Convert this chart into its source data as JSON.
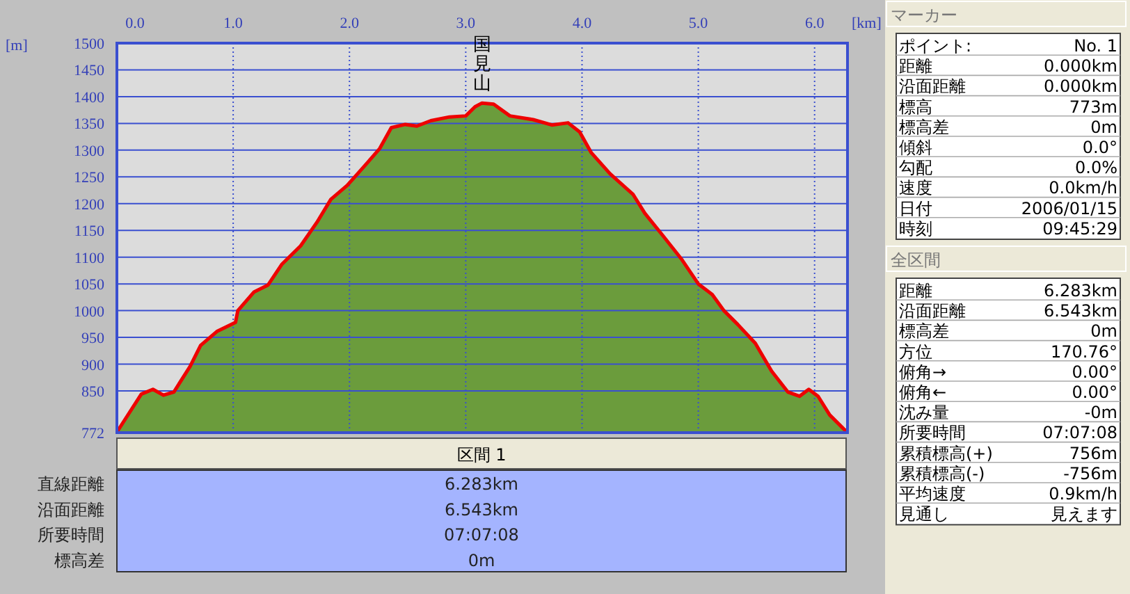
{
  "chart_data": [
    {
      "type": "area",
      "xlabel": "[km]",
      "ylabel": "[m]",
      "xlim": [
        0,
        6.283
      ],
      "ylim": [
        772,
        1500
      ],
      "xticks": [
        {
          "value": 0,
          "label": "0.0"
        },
        {
          "value": 1,
          "label": "1.0"
        },
        {
          "value": 2,
          "label": "2.0"
        },
        {
          "value": 3,
          "label": "3.0"
        },
        {
          "value": 4,
          "label": "4.0"
        },
        {
          "value": 5,
          "label": "5.0"
        },
        {
          "value": 6,
          "label": "6.0"
        }
      ],
      "yticks": [
        772,
        850,
        900,
        950,
        1000,
        1050,
        1100,
        1150,
        1200,
        1250,
        1300,
        1350,
        1400,
        1450,
        1500
      ],
      "grid": true,
      "x": [
        0,
        0.21,
        0.31,
        0.4,
        0.49,
        0.63,
        0.72,
        0.86,
        1.02,
        1.04,
        1.18,
        1.3,
        1.42,
        1.58,
        1.72,
        1.84,
        1.98,
        2.14,
        2.26,
        2.36,
        2.48,
        2.58,
        2.7,
        2.86,
        3.0,
        3.08,
        3.14,
        3.24,
        3.38,
        3.58,
        3.74,
        3.88,
        3.98,
        4.08,
        4.24,
        4.44,
        4.54,
        4.7,
        4.86,
        5.0,
        5.12,
        5.22,
        5.34,
        5.49,
        5.63,
        5.77,
        5.87,
        5.95,
        6.03,
        6.13,
        6.25,
        6.283
      ],
      "series": [
        {
          "color": "#6b9c3c",
          "values": [
            773,
            844,
            853,
            842,
            848,
            896,
            935,
            961,
            978,
            1000,
            1035,
            1048,
            1087,
            1121,
            1165,
            1208,
            1234,
            1273,
            1303,
            1342,
            1348,
            1345,
            1355,
            1362,
            1364,
            1381,
            1388,
            1386,
            1364,
            1357,
            1347,
            1351,
            1334,
            1295,
            1256,
            1217,
            1182,
            1139,
            1095,
            1050,
            1030,
            1000,
            974,
            939,
            887,
            848,
            840,
            853,
            840,
            805,
            779,
            773
          ]
        }
      ],
      "annotations": [
        {
          "text": "国見山",
          "x": 3.14,
          "y": 1388
        }
      ]
    },
    {
      "type": "other",
      "title": "区間 1",
      "annotations": [
        "直線距離",
        "6.283km",
        "沿面距離",
        "6.543km",
        "所要時間",
        "07:07:08",
        "標高差",
        "0m"
      ]
    },
    {
      "type": "other",
      "title": "マーカー",
      "annotations": [
        "ポイント:",
        "No. 1",
        "距離",
        "0.000km",
        "沿面距離",
        "0.000km",
        "標高",
        "773m",
        "標高差",
        "0m",
        "傾斜",
        "0.0°",
        "勾配",
        "0.0%",
        "速度",
        "0.0km/h",
        "日付",
        "2006/01/15",
        "時刻",
        "09:45:29"
      ]
    },
    {
      "type": "other",
      "title": "全区間",
      "annotations": [
        "距離",
        "6.283km",
        "沿面距離",
        "6.543km",
        "標高差",
        "0m",
        "方位",
        "170.76°",
        "俯角→",
        "0.00°",
        "俯角←",
        "0.00°",
        "沈み量",
        "-0m",
        "所要時間",
        "07:07:08",
        "累積標高(+)",
        "756m",
        "累積標高(-)",
        "-756m",
        "平均速度",
        "0.9km/h",
        "見通し",
        "見えます"
      ]
    }
  ]
}
